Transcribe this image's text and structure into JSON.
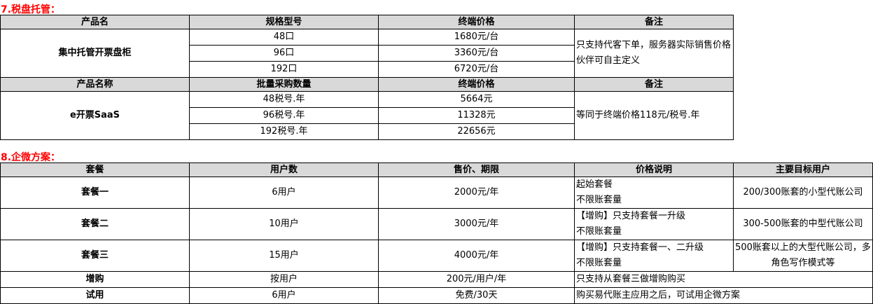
{
  "section7": {
    "title": "7.税盘托管：",
    "header1": [
      "产品名",
      "规格型号",
      "终端价格",
      "备注"
    ],
    "product1": "集中托管开票盘柜",
    "rows1": [
      [
        "48口",
        "1680元/台"
      ],
      [
        "96口",
        "3360元/台"
      ],
      [
        "192口",
        "6720元/台"
      ]
    ],
    "note1": "只支持代客下单，服务器实际销售价格伙伴可自主定义",
    "header2": [
      "产品名称",
      "批量采购数量",
      "终端价格",
      "备注"
    ],
    "product2": "e开票SaaS",
    "rows2": [
      [
        "48税号.年",
        "5664元"
      ],
      [
        "96税号.年",
        "11328元"
      ],
      [
        "192税号.年",
        "22656元"
      ]
    ],
    "note2": "等同于终端价格118元/税号.年"
  },
  "section8": {
    "title": "8.企微方案：",
    "header": [
      "套餐",
      "用户数",
      "售价、期限",
      "价格说明",
      "主要目标用户"
    ],
    "rows": [
      {
        "name": "套餐一",
        "users": "6用户",
        "price": "2000元/年",
        "desc1": "起始套餐",
        "desc2": "不限账套量",
        "target": "200/300账套的小型代账公司"
      },
      {
        "name": "套餐二",
        "users": "10用户",
        "price": "3000元/年",
        "desc1": "【增购】只支持套餐一升级",
        "desc2": "不限账套量",
        "target": "300-500账套的中型代账公司"
      },
      {
        "name": "套餐三",
        "users": "15用户",
        "price": "4000元/年",
        "desc1": "【增购】只支持套餐一、二升级",
        "desc2": "不限账套量",
        "target": "500账套以上的大型代账公司，多角色写作模式等"
      }
    ],
    "extra": [
      {
        "name": "增购",
        "users": "按用户",
        "price": "200元/用户/年",
        "desc": "只支持从套餐三做增购购买"
      },
      {
        "name": "试用",
        "users": "6用户",
        "price": "免费/30天",
        "desc": "购买易代账主应用之后，可试用企微方案"
      }
    ]
  }
}
